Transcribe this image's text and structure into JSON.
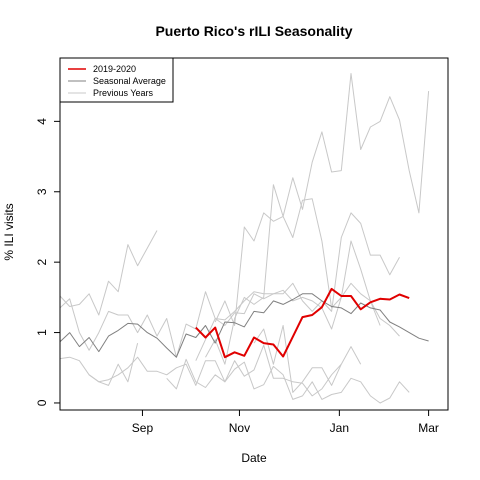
{
  "chart_data": {
    "type": "line",
    "title": "Puerto Rico's rILI Seasonality",
    "xlabel": "Date",
    "ylabel": "% ILI visits",
    "xlim": [
      0,
      40
    ],
    "ylim": [
      -0.1,
      4.9
    ],
    "x_ticks": [
      {
        "x": 8.5,
        "label": "Sep"
      },
      {
        "x": 18.5,
        "label": "Nov"
      },
      {
        "x": 28.8,
        "label": "Jan"
      },
      {
        "x": 38,
        "label": "Mar"
      }
    ],
    "y_ticks": [
      0,
      1,
      2,
      3,
      4
    ],
    "legend": {
      "position": "top-left",
      "entries": [
        {
          "label": "2019-2020",
          "color": "#e00000"
        },
        {
          "label": "Seasonal Average",
          "color": "#808080"
        },
        {
          "label": "Previous Years",
          "color": "#c8c8c8"
        }
      ]
    },
    "colors": {
      "current": "#e00000",
      "average": "#808080",
      "previous": "#c8c8c8"
    },
    "current_season": {
      "name": "2019-2020",
      "start_x": 14,
      "values": [
        1.07,
        0.93,
        1.07,
        0.65,
        0.72,
        0.67,
        0.93,
        0.85,
        0.83,
        0.66,
        0.94,
        1.22,
        1.25,
        1.36,
        1.62,
        1.52,
        1.52,
        1.33,
        1.43,
        1.48,
        1.47,
        1.54,
        1.49
      ]
    },
    "seasonal_average": {
      "name": "Seasonal Average",
      "start_x": 0,
      "values": [
        0.87,
        1.0,
        0.8,
        0.93,
        0.73,
        0.95,
        1.03,
        1.13,
        1.12,
        1.0,
        0.92,
        0.78,
        0.65,
        0.98,
        0.93,
        1.1,
        0.85,
        1.15,
        1.14,
        1.08,
        1.3,
        1.28,
        1.45,
        1.4,
        1.47,
        1.55,
        1.55,
        1.45,
        1.37,
        1.35,
        1.27,
        1.42,
        1.35,
        1.32,
        1.15,
        1.08,
        1.0,
        0.92,
        0.88
      ]
    },
    "previous_years": [
      {
        "start_x": 0,
        "values": [
          1.52,
          1.37,
          1.4,
          1.55,
          1.25,
          1.73,
          1.58,
          2.25,
          1.95,
          2.2,
          2.45
        ]
      },
      {
        "start_x": 0,
        "values": [
          1.35,
          1.48,
          1.0,
          0.75,
          1.0,
          1.3,
          1.25,
          1.25,
          1.0,
          1.25,
          0.95,
          1.2,
          0.65,
          1.12,
          1.05,
          1.58,
          1.2,
          1.1,
          1.28,
          1.27,
          1.55,
          1.48,
          1.55,
          1.6,
          1.45,
          1.5,
          1.45,
          1.35,
          1.05,
          1.5,
          1.7,
          1.55,
          1.45,
          1.2,
          1.1,
          0.95
        ]
      },
      {
        "start_x": 0,
        "values": [
          0.63,
          0.65,
          0.6,
          0.4,
          0.3,
          0.33,
          0.4,
          0.5,
          0.65,
          0.45,
          0.45,
          0.4,
          0.5,
          0.55,
          0.25,
          0.6,
          0.6,
          0.3,
          0.6,
          0.38,
          0.47,
          0.82,
          0.35,
          0.35,
          0.3,
          0.28,
          0.1,
          0.2,
          0.4,
          0.55
        ]
      },
      {
        "start_x": 3,
        "values": [
          0.4,
          0.3,
          0.25,
          0.55,
          0.3,
          0.85
        ]
      },
      {
        "start_x": 11,
        "values": [
          0.35,
          0.2,
          0.62,
          0.3,
          0.22,
          0.4,
          0.3,
          0.48,
          0.58,
          0.2,
          0.26,
          0.52,
          0.4,
          0.05,
          0.1,
          0.3,
          0.05,
          0.12,
          0.15,
          0.35,
          0.3,
          0.1,
          0.0,
          0.07,
          0.3,
          0.15
        ]
      },
      {
        "start_x": 14,
        "values": [
          0.6,
          0.9,
          1.2,
          1.18,
          1.3,
          1.45,
          1.58,
          1.55,
          1.55,
          1.55,
          1.7,
          1.45,
          1.3,
          1.45,
          1.3,
          2.35,
          2.7,
          2.55,
          2.1,
          2.1,
          1.82,
          2.07
        ]
      },
      {
        "start_x": 16,
        "values": [
          1.15,
          1.45,
          1.1,
          2.5,
          2.3,
          2.7,
          2.58,
          2.65,
          2.35,
          2.88,
          2.9,
          2.3,
          1.35,
          1.5,
          2.3,
          1.9,
          1.45,
          1.1
        ]
      },
      {
        "start_x": 15,
        "values": [
          0.65,
          0.9,
          0.55,
          1.2,
          1.5,
          1.4,
          1.5,
          3.1,
          2.65,
          3.2,
          2.75,
          3.42,
          3.85,
          3.28,
          3.3,
          4.68,
          3.6,
          3.92,
          4.0,
          4.35,
          4.02,
          3.3,
          2.7,
          4.43
        ]
      },
      {
        "start_x": 20,
        "values": [
          0.85,
          1.05,
          0.55,
          1.1,
          0.15,
          0.3,
          0.5,
          0.5,
          0.25,
          0.55,
          0.8,
          0.55
        ]
      }
    ]
  }
}
